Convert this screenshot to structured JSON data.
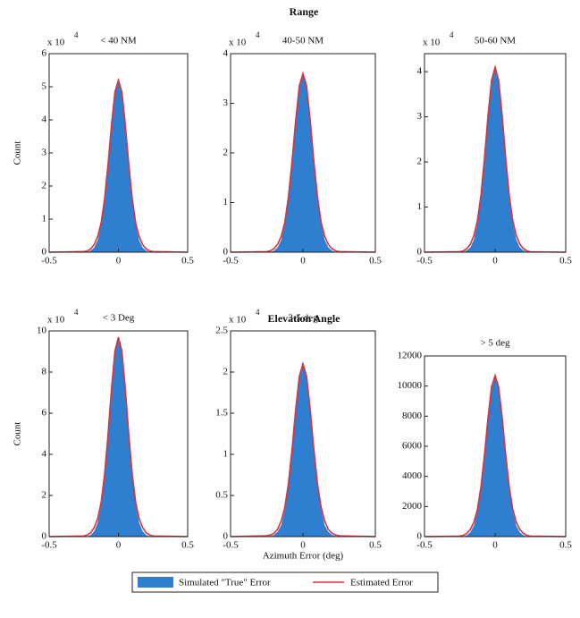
{
  "figure": {
    "row_titles": [
      "Range",
      "Elevation Angle"
    ]
  },
  "chart_data": [
    {
      "type": "area",
      "title": "< 40 NM",
      "ylabel": "Count",
      "y_multiplier": {
        "base": "x 10",
        "exponent": "4"
      },
      "x": [
        -0.5,
        -0.25,
        -0.225,
        -0.2,
        -0.175,
        -0.15,
        -0.125,
        -0.1,
        -0.075,
        -0.05,
        -0.025,
        0,
        0.025,
        0.05,
        0.075,
        0.1,
        0.125,
        0.15,
        0.175,
        0.2,
        0.225,
        0.25,
        0.5
      ],
      "series": [
        {
          "name": "Simulated \"True\" Error",
          "color": "#2f7fd0",
          "values": [
            0,
            0,
            0.01,
            0.05,
            0.14,
            0.36,
            0.82,
            1.59,
            2.67,
            3.87,
            4.83,
            5.2,
            4.83,
            3.87,
            2.67,
            1.59,
            0.82,
            0.36,
            0.14,
            0.05,
            0.01,
            0,
            0
          ]
        },
        {
          "name": "Estimated Error",
          "color": "#e0303a",
          "values": [
            0,
            0.02,
            0.04,
            0.1,
            0.23,
            0.47,
            0.88,
            1.61,
            2.65,
            3.85,
            4.84,
            5.2,
            4.84,
            3.85,
            2.65,
            1.61,
            0.88,
            0.47,
            0.23,
            0.1,
            0.04,
            0.02,
            0
          ]
        }
      ],
      "xlim": [
        -0.5,
        0.5
      ],
      "xticks": [
        -0.5,
        0,
        0.5
      ],
      "ylim": [
        0,
        6
      ],
      "yticks": [
        0,
        1,
        2,
        3,
        4,
        5,
        6
      ]
    },
    {
      "type": "area",
      "title": "40-50 NM",
      "y_multiplier": {
        "base": "x 10",
        "exponent": "4"
      },
      "x": [
        -0.5,
        -0.25,
        -0.225,
        -0.2,
        -0.175,
        -0.15,
        -0.125,
        -0.1,
        -0.075,
        -0.05,
        -0.025,
        0,
        0.025,
        0.05,
        0.075,
        0.1,
        0.125,
        0.15,
        0.175,
        0.2,
        0.225,
        0.25,
        0.5
      ],
      "series": [
        {
          "name": "Simulated \"True\" Error",
          "color": "#2f7fd0",
          "values": [
            0,
            0,
            0.01,
            0.03,
            0.1,
            0.25,
            0.57,
            1.1,
            1.85,
            2.68,
            3.34,
            3.6,
            3.34,
            2.68,
            1.85,
            1.1,
            0.57,
            0.25,
            0.1,
            0.03,
            0.01,
            0,
            0
          ]
        },
        {
          "name": "Estimated Error",
          "color": "#e0303a",
          "values": [
            0,
            0.01,
            0.03,
            0.07,
            0.16,
            0.32,
            0.61,
            1.12,
            1.84,
            2.66,
            3.35,
            3.6,
            3.35,
            2.66,
            1.84,
            1.12,
            0.61,
            0.32,
            0.16,
            0.07,
            0.03,
            0.01,
            0
          ]
        }
      ],
      "xlim": [
        -0.5,
        0.5
      ],
      "xticks": [
        -0.5,
        0,
        0.5
      ],
      "ylim": [
        0,
        4
      ],
      "yticks": [
        0,
        1,
        2,
        3,
        4
      ]
    },
    {
      "type": "area",
      "title": "50-60 NM",
      "y_multiplier": {
        "base": "x 10",
        "exponent": "4"
      },
      "x": [
        -0.5,
        -0.25,
        -0.225,
        -0.2,
        -0.175,
        -0.15,
        -0.125,
        -0.1,
        -0.075,
        -0.05,
        -0.025,
        0,
        0.025,
        0.05,
        0.075,
        0.1,
        0.125,
        0.15,
        0.175,
        0.2,
        0.225,
        0.25,
        0.5
      ],
      "series": [
        {
          "name": "Simulated \"True\" Error",
          "color": "#2f7fd0",
          "values": [
            0,
            0,
            0.01,
            0.04,
            0.11,
            0.28,
            0.64,
            1.25,
            2.11,
            3.05,
            3.81,
            4.1,
            3.81,
            3.05,
            2.11,
            1.25,
            0.64,
            0.28,
            0.11,
            0.04,
            0.01,
            0,
            0
          ]
        },
        {
          "name": "Estimated Error",
          "color": "#e0303a",
          "values": [
            0,
            0.01,
            0.03,
            0.08,
            0.18,
            0.37,
            0.7,
            1.27,
            2.09,
            3.03,
            3.81,
            4.1,
            3.81,
            3.03,
            2.09,
            1.27,
            0.7,
            0.37,
            0.18,
            0.08,
            0.03,
            0.01,
            0
          ]
        }
      ],
      "xlim": [
        -0.5,
        0.5
      ],
      "xticks": [
        -0.5,
        0,
        0.5
      ],
      "ylim": [
        0,
        4.4
      ],
      "yticks": [
        0,
        1,
        2,
        3,
        4
      ]
    },
    {
      "type": "area",
      "title": "< 3 Deg",
      "ylabel": "Count",
      "y_multiplier": {
        "base": "x 10",
        "exponent": "4"
      },
      "x": [
        -0.5,
        -0.25,
        -0.225,
        -0.2,
        -0.175,
        -0.15,
        -0.125,
        -0.1,
        -0.075,
        -0.05,
        -0.025,
        0,
        0.025,
        0.05,
        0.075,
        0.1,
        0.125,
        0.15,
        0.175,
        0.2,
        0.225,
        0.25,
        0.5
      ],
      "series": [
        {
          "name": "Simulated \"True\" Error",
          "color": "#2f7fd0",
          "values": [
            0,
            0,
            0.02,
            0.08,
            0.26,
            0.67,
            1.52,
            2.97,
            4.99,
            7.22,
            9.01,
            9.7,
            9.01,
            7.22,
            4.99,
            2.97,
            1.52,
            0.67,
            0.26,
            0.08,
            0.02,
            0,
            0
          ]
        },
        {
          "name": "Estimated Error",
          "color": "#e0303a",
          "values": [
            0,
            0.03,
            0.08,
            0.19,
            0.44,
            0.87,
            1.65,
            3.01,
            4.95,
            7.18,
            9.02,
            9.7,
            9.02,
            7.18,
            4.95,
            3.01,
            1.65,
            0.87,
            0.44,
            0.19,
            0.08,
            0.03,
            0
          ]
        }
      ],
      "xlim": [
        -0.5,
        0.5
      ],
      "xticks": [
        -0.5,
        0,
        0.5
      ],
      "ylim": [
        0,
        10
      ],
      "yticks": [
        0,
        2,
        4,
        6,
        8,
        10
      ]
    },
    {
      "type": "area",
      "title": "3-5 deg",
      "xlabel": "Azimuth Error (deg)",
      "y_multiplier": {
        "base": "x 10",
        "exponent": "4"
      },
      "x": [
        -0.5,
        -0.25,
        -0.225,
        -0.2,
        -0.175,
        -0.15,
        -0.125,
        -0.1,
        -0.075,
        -0.05,
        -0.025,
        0,
        0.025,
        0.05,
        0.075,
        0.1,
        0.125,
        0.15,
        0.175,
        0.2,
        0.225,
        0.25,
        0.5
      ],
      "series": [
        {
          "name": "Simulated \"True\" Error",
          "color": "#2f7fd0",
          "values": [
            0,
            0,
            0.01,
            0.02,
            0.06,
            0.14,
            0.33,
            0.64,
            1.08,
            1.56,
            1.95,
            2.1,
            1.95,
            1.56,
            1.08,
            0.64,
            0.33,
            0.14,
            0.06,
            0.02,
            0.01,
            0,
            0
          ]
        },
        {
          "name": "Estimated Error",
          "color": "#e0303a",
          "values": [
            0,
            0.01,
            0.02,
            0.04,
            0.09,
            0.19,
            0.36,
            0.65,
            1.07,
            1.55,
            1.95,
            2.1,
            1.95,
            1.55,
            1.07,
            0.65,
            0.36,
            0.19,
            0.09,
            0.04,
            0.02,
            0.01,
            0
          ]
        }
      ],
      "xlim": [
        -0.5,
        0.5
      ],
      "xticks": [
        -0.5,
        0,
        0.5
      ],
      "ylim": [
        0,
        2.5
      ],
      "yticks": [
        0,
        0.5,
        1,
        1.5,
        2,
        2.5
      ]
    },
    {
      "type": "area",
      "title": "> 5 deg",
      "x": [
        -0.5,
        -0.25,
        -0.225,
        -0.2,
        -0.175,
        -0.15,
        -0.125,
        -0.1,
        -0.075,
        -0.05,
        -0.025,
        0,
        0.025,
        0.05,
        0.075,
        0.1,
        0.125,
        0.15,
        0.175,
        0.2,
        0.225,
        0.25,
        0.5
      ],
      "series": [
        {
          "name": "Simulated \"True\" Error",
          "color": "#2f7fd0",
          "values": [
            0,
            0,
            27,
            93,
            289,
            738,
            1680,
            3274,
            5500,
            7961,
            9940,
            10700,
            9940,
            7961,
            5500,
            3274,
            1680,
            738,
            289,
            93,
            27,
            0,
            0
          ]
        },
        {
          "name": "Estimated Error",
          "color": "#e0303a",
          "values": [
            0,
            32,
            86,
            214,
            482,
            963,
            1819,
            3317,
            5457,
            7918,
            9951,
            10700,
            9951,
            7918,
            5457,
            3317,
            1819,
            963,
            482,
            214,
            86,
            32,
            0
          ]
        }
      ],
      "xlim": [
        -0.5,
        0.5
      ],
      "xticks": [
        -0.5,
        0,
        0.5
      ],
      "ylim": [
        0,
        12000
      ],
      "yticks": [
        0,
        2000,
        4000,
        6000,
        8000,
        10000,
        12000
      ]
    }
  ]
}
